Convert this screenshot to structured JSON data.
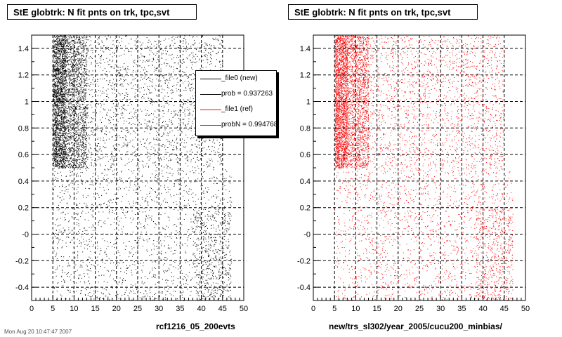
{
  "page": {
    "footer_text": "Mon Aug 20 10:47:47 2007"
  },
  "legend": {
    "entries": [
      {
        "label": "_file0 (new)",
        "color": "#000000"
      },
      {
        "label": "prob = 0.937263",
        "color": "#000000"
      },
      {
        "label": "_file1 (ref)",
        "color": "#ff0000"
      },
      {
        "label": "probN = 0.994768",
        "color": "#ff0000"
      }
    ]
  },
  "chart_data": [
    {
      "type": "scatter",
      "title": "StE globtrk: N fit pnts on trk, tpc,svt",
      "xlabel": "rcf1216_05_200evts",
      "ylabel": "",
      "xlim": [
        0,
        50
      ],
      "ylim": [
        -0.5,
        1.5
      ],
      "xticks": [
        "0",
        "5",
        "10",
        "15",
        "20",
        "25",
        "30",
        "35",
        "40",
        "45",
        "50"
      ],
      "yticks": [
        "-0.4",
        "-0.2",
        "-0",
        "0.2",
        "0.4",
        "0.6",
        "0.8",
        "1",
        "1.2",
        "1.4"
      ],
      "grid": true,
      "color": "#000000",
      "distribution": {
        "x_range": [
          3,
          47
        ],
        "y_range": [
          -0.5,
          1.5
        ],
        "dense_band": {
          "x": [
            5,
            13
          ],
          "y": [
            0.5,
            1.5
          ]
        },
        "mid_band": {
          "x": [
            13,
            45
          ],
          "y": [
            0.5,
            1.5
          ]
        },
        "low_band": {
          "x": [
            5,
            47
          ],
          "y": [
            -0.5,
            0.5
          ]
        }
      }
    },
    {
      "type": "scatter",
      "title": "StE globtrk: N fit pnts on trk, tpc,svt",
      "xlabel": "new/trs_sl302/year_2005/cucu200_minbias/",
      "ylabel": "",
      "xlim": [
        0,
        50
      ],
      "ylim": [
        -0.5,
        1.5
      ],
      "xticks": [
        "0",
        "5",
        "10",
        "15",
        "20",
        "25",
        "30",
        "35",
        "40",
        "45",
        "50"
      ],
      "yticks": [
        "-0.4",
        "-0.2",
        "-0",
        "0.2",
        "0.4",
        "0.6",
        "0.8",
        "1",
        "1.2",
        "1.4"
      ],
      "grid": true,
      "color": "#ff0000",
      "distribution": {
        "x_range": [
          3,
          47
        ],
        "y_range": [
          -0.5,
          1.5
        ],
        "dense_band": {
          "x": [
            5,
            13
          ],
          "y": [
            0.5,
            1.5
          ]
        },
        "mid_band": {
          "x": [
            13,
            45
          ],
          "y": [
            0.5,
            1.5
          ]
        },
        "low_band": {
          "x": [
            5,
            47
          ],
          "y": [
            -0.5,
            0.5
          ]
        }
      }
    }
  ]
}
